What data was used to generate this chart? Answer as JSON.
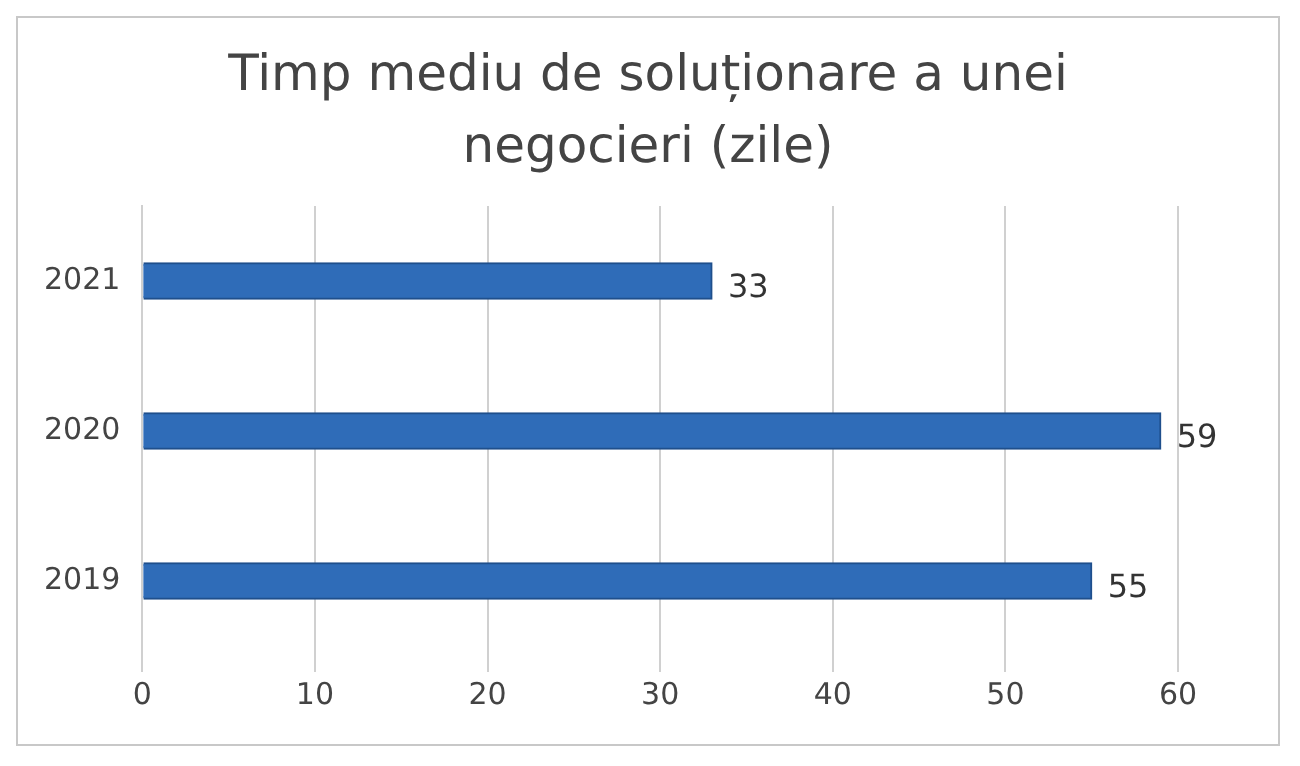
{
  "chart_data": {
    "type": "bar",
    "orientation": "horizontal",
    "title": "Timp mediu de soluționare a unei negocieri (zile)",
    "categories": [
      "2021",
      "2020",
      "2019"
    ],
    "values": [
      33,
      59,
      55
    ],
    "color": "#2f6cb8",
    "xlim": [
      0,
      60
    ],
    "xticks": [
      0,
      10,
      20,
      30,
      40,
      50,
      60
    ],
    "grid": "x",
    "data_labels": true
  }
}
